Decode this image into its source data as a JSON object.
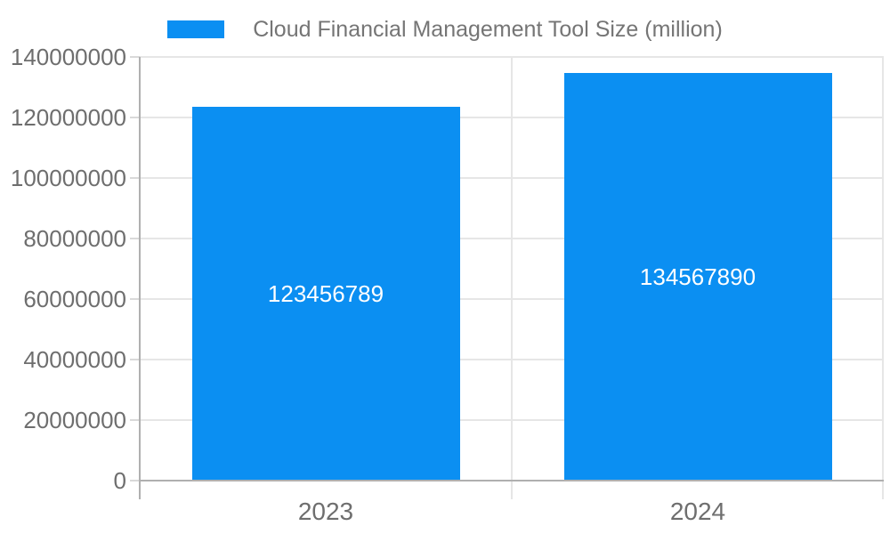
{
  "legend": {
    "position": "top",
    "swatch_icon": "series-color-swatch"
  },
  "chart_data": {
    "type": "bar",
    "title": "Cloud Financial Management Tool Size (million)",
    "categories": [
      "2023",
      "2024"
    ],
    "series": [
      {
        "name": "Cloud Financial Management Tool Size (million)",
        "values": [
          123456789,
          134567890
        ]
      }
    ],
    "bar_labels": [
      "123456789",
      "134567890"
    ],
    "xlabel": "",
    "ylabel": "",
    "ylim": [
      0,
      140000000
    ],
    "ytick_step": 20000000,
    "yticks": [
      0,
      20000000,
      40000000,
      60000000,
      80000000,
      100000000,
      120000000,
      140000000
    ],
    "ytick_labels": [
      "0",
      "20000000",
      "40000000",
      "60000000",
      "80000000",
      "100000000",
      "120000000",
      "140000000"
    ],
    "grid": true,
    "legend_position": "top"
  },
  "colors": {
    "bar": "#0b8ff2",
    "grid": "#e6e6e6",
    "tick": "#d9d9d9",
    "axis": "#b0b0b0",
    "axis_label": "#6e6e6e",
    "title": "#757575",
    "bar_label": "#ffffff",
    "background": "#ffffff"
  }
}
